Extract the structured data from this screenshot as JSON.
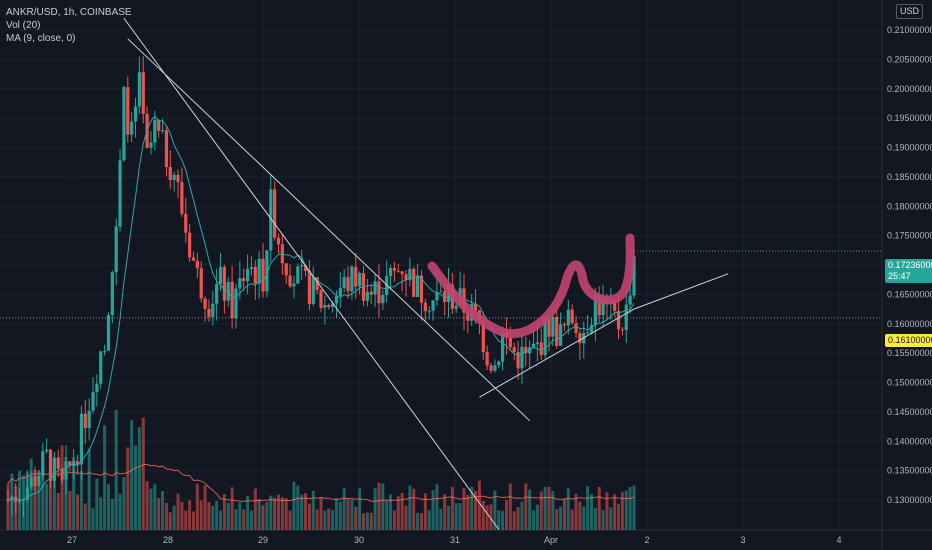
{
  "legend": {
    "symbol": "ANKR/USD, 1h, COINBASE",
    "vol": "Vol (20)",
    "ma": "MA (9, close, 0)"
  },
  "currency_badge": "USD",
  "price_axis": {
    "ticks": [
      "0.21000000",
      "0.20500000",
      "0.20000000",
      "0.19500000",
      "0.19000000",
      "0.18500000",
      "0.18000000",
      "0.17500000",
      "0.17000000",
      "0.16500000",
      "0.16000000",
      "0.15500000",
      "0.15000000",
      "0.14500000",
      "0.14000000",
      "0.13500000",
      "0.13000000"
    ],
    "current_price": "0.17236000",
    "countdown": "25:47",
    "marked_price": "0.16100000"
  },
  "time_axis": {
    "ticks": [
      "27",
      "28",
      "29",
      "30",
      "31",
      "Apr",
      "2",
      "3",
      "4"
    ]
  },
  "colors": {
    "up": "#26a69a",
    "down": "#ef5350",
    "ma": "#2aa8a8",
    "vol_ma": "#ff6d5a",
    "drawing": "#c2456f",
    "trendline": "#d1d4dc",
    "current_badge": "#26a69a",
    "marked_badge": "#ffeb3b"
  },
  "chart_data": {
    "type": "candlestick",
    "xlabel": "",
    "ylabel": "",
    "ylim": [
      0.1295,
      0.2125
    ],
    "x_ticks": [
      "27",
      "28",
      "29",
      "30",
      "31",
      "Apr",
      "2",
      "3",
      "4"
    ],
    "key_points": [
      {
        "time": "27 early",
        "price": 0.13
      },
      {
        "time": "28 peak",
        "price": 0.207
      },
      {
        "time": "28 close",
        "price": 0.192
      },
      {
        "time": "29",
        "price": 0.18
      },
      {
        "time": "30",
        "price": 0.167
      },
      {
        "time": "31 low",
        "price": 0.151
      },
      {
        "time": "Apr",
        "price": 0.158
      },
      {
        "time": "last",
        "price": 0.17236
      }
    ],
    "moving_average": "MA (9, close, 0)",
    "volume_indicator": "Vol (20)",
    "current_price": 0.17236,
    "horizontal_line": 0.161
  }
}
